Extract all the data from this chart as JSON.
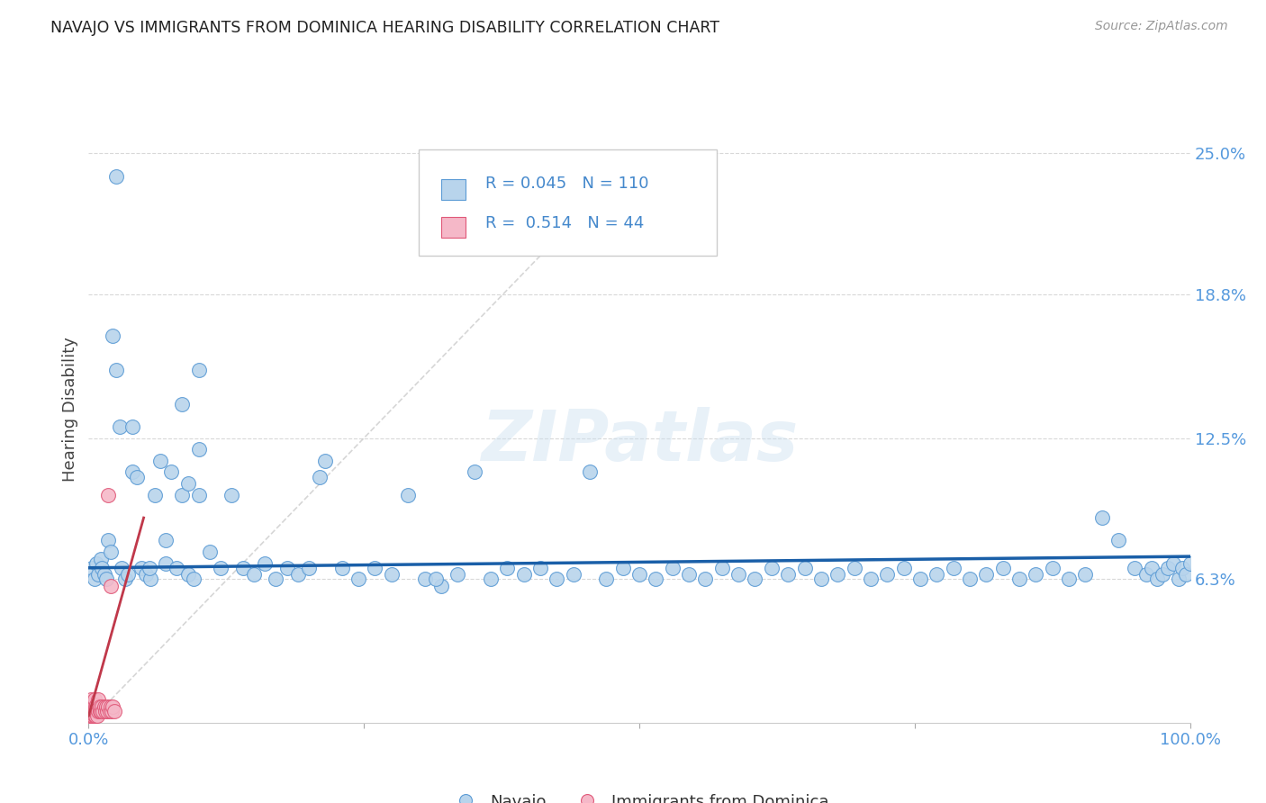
{
  "title": "NAVAJO VS IMMIGRANTS FROM DOMINICA HEARING DISABILITY CORRELATION CHART",
  "source": "Source: ZipAtlas.com",
  "ylabel": "Hearing Disability",
  "legend_label_1": "Navajo",
  "legend_label_2": "Immigrants from Dominica",
  "R1": 0.045,
  "N1": 110,
  "R2": 0.514,
  "N2": 44,
  "navajo_x": [
    0.003,
    0.005,
    0.007,
    0.009,
    0.011,
    0.012,
    0.014,
    0.016,
    0.018,
    0.02,
    0.022,
    0.025,
    0.028,
    0.03,
    0.033,
    0.036,
    0.04,
    0.044,
    0.048,
    0.052,
    0.056,
    0.06,
    0.065,
    0.07,
    0.075,
    0.08,
    0.085,
    0.09,
    0.095,
    0.1,
    0.11,
    0.12,
    0.13,
    0.14,
    0.15,
    0.16,
    0.17,
    0.18,
    0.19,
    0.2,
    0.215,
    0.23,
    0.245,
    0.26,
    0.275,
    0.29,
    0.305,
    0.32,
    0.335,
    0.35,
    0.365,
    0.38,
    0.395,
    0.41,
    0.425,
    0.44,
    0.455,
    0.47,
    0.485,
    0.5,
    0.515,
    0.53,
    0.545,
    0.56,
    0.575,
    0.59,
    0.605,
    0.62,
    0.635,
    0.65,
    0.665,
    0.68,
    0.695,
    0.71,
    0.725,
    0.74,
    0.755,
    0.77,
    0.785,
    0.8,
    0.815,
    0.83,
    0.845,
    0.86,
    0.875,
    0.89,
    0.905,
    0.92,
    0.935,
    0.95,
    0.96,
    0.965,
    0.97,
    0.975,
    0.98,
    0.985,
    0.99,
    0.993,
    0.996,
    1.0,
    0.025,
    0.04,
    0.055,
    0.07,
    0.085,
    0.1,
    0.21,
    0.315,
    0.1,
    0.09
  ],
  "navajo_y": [
    0.068,
    0.063,
    0.07,
    0.065,
    0.072,
    0.068,
    0.065,
    0.063,
    0.08,
    0.075,
    0.17,
    0.155,
    0.13,
    0.068,
    0.063,
    0.065,
    0.11,
    0.108,
    0.068,
    0.065,
    0.063,
    0.1,
    0.115,
    0.07,
    0.11,
    0.068,
    0.1,
    0.065,
    0.063,
    0.1,
    0.075,
    0.068,
    0.1,
    0.068,
    0.065,
    0.07,
    0.063,
    0.068,
    0.065,
    0.068,
    0.115,
    0.068,
    0.063,
    0.068,
    0.065,
    0.1,
    0.063,
    0.06,
    0.065,
    0.11,
    0.063,
    0.068,
    0.065,
    0.068,
    0.063,
    0.065,
    0.11,
    0.063,
    0.068,
    0.065,
    0.063,
    0.068,
    0.065,
    0.063,
    0.068,
    0.065,
    0.063,
    0.068,
    0.065,
    0.068,
    0.063,
    0.065,
    0.068,
    0.063,
    0.065,
    0.068,
    0.063,
    0.065,
    0.068,
    0.063,
    0.065,
    0.068,
    0.063,
    0.065,
    0.068,
    0.063,
    0.065,
    0.09,
    0.08,
    0.068,
    0.065,
    0.068,
    0.063,
    0.065,
    0.068,
    0.07,
    0.063,
    0.068,
    0.065,
    0.07,
    0.24,
    0.13,
    0.068,
    0.08,
    0.14,
    0.155,
    0.108,
    0.063,
    0.12,
    0.105
  ],
  "dominica_x": [
    0.001,
    0.001,
    0.001,
    0.002,
    0.002,
    0.002,
    0.002,
    0.003,
    0.003,
    0.003,
    0.003,
    0.004,
    0.004,
    0.004,
    0.005,
    0.005,
    0.005,
    0.005,
    0.006,
    0.006,
    0.006,
    0.007,
    0.007,
    0.008,
    0.008,
    0.009,
    0.009,
    0.01,
    0.01,
    0.011,
    0.012,
    0.013,
    0.014,
    0.015,
    0.016,
    0.017,
    0.018,
    0.019,
    0.02,
    0.021,
    0.022,
    0.023,
    0.018,
    0.02
  ],
  "dominica_y": [
    0.005,
    0.008,
    0.003,
    0.005,
    0.007,
    0.003,
    0.01,
    0.005,
    0.007,
    0.003,
    0.008,
    0.005,
    0.003,
    0.007,
    0.005,
    0.003,
    0.008,
    0.01,
    0.005,
    0.003,
    0.007,
    0.005,
    0.008,
    0.003,
    0.007,
    0.005,
    0.01,
    0.005,
    0.007,
    0.005,
    0.007,
    0.005,
    0.007,
    0.005,
    0.007,
    0.005,
    0.007,
    0.005,
    0.007,
    0.005,
    0.007,
    0.005,
    0.1,
    0.06
  ],
  "color_navajo_fill": "#b8d4ec",
  "color_navajo_edge": "#5b9bd5",
  "color_dominica_fill": "#f5b8c8",
  "color_dominica_edge": "#e05878",
  "color_navajo_line": "#1a5fa8",
  "color_dominica_line": "#c0384a",
  "color_diag_line": "#cccccc",
  "color_text_blue": "#4488cc",
  "color_tick_blue": "#5599dd",
  "xlim": [
    0.0,
    1.0
  ],
  "ylim": [
    0.0,
    0.275
  ],
  "ytick_vals": [
    0.063,
    0.125,
    0.188,
    0.25
  ],
  "ytick_labels": [
    "6.3%",
    "12.5%",
    "18.8%",
    "25.0%"
  ],
  "background_color": "#ffffff",
  "watermark": "ZIPatlas"
}
